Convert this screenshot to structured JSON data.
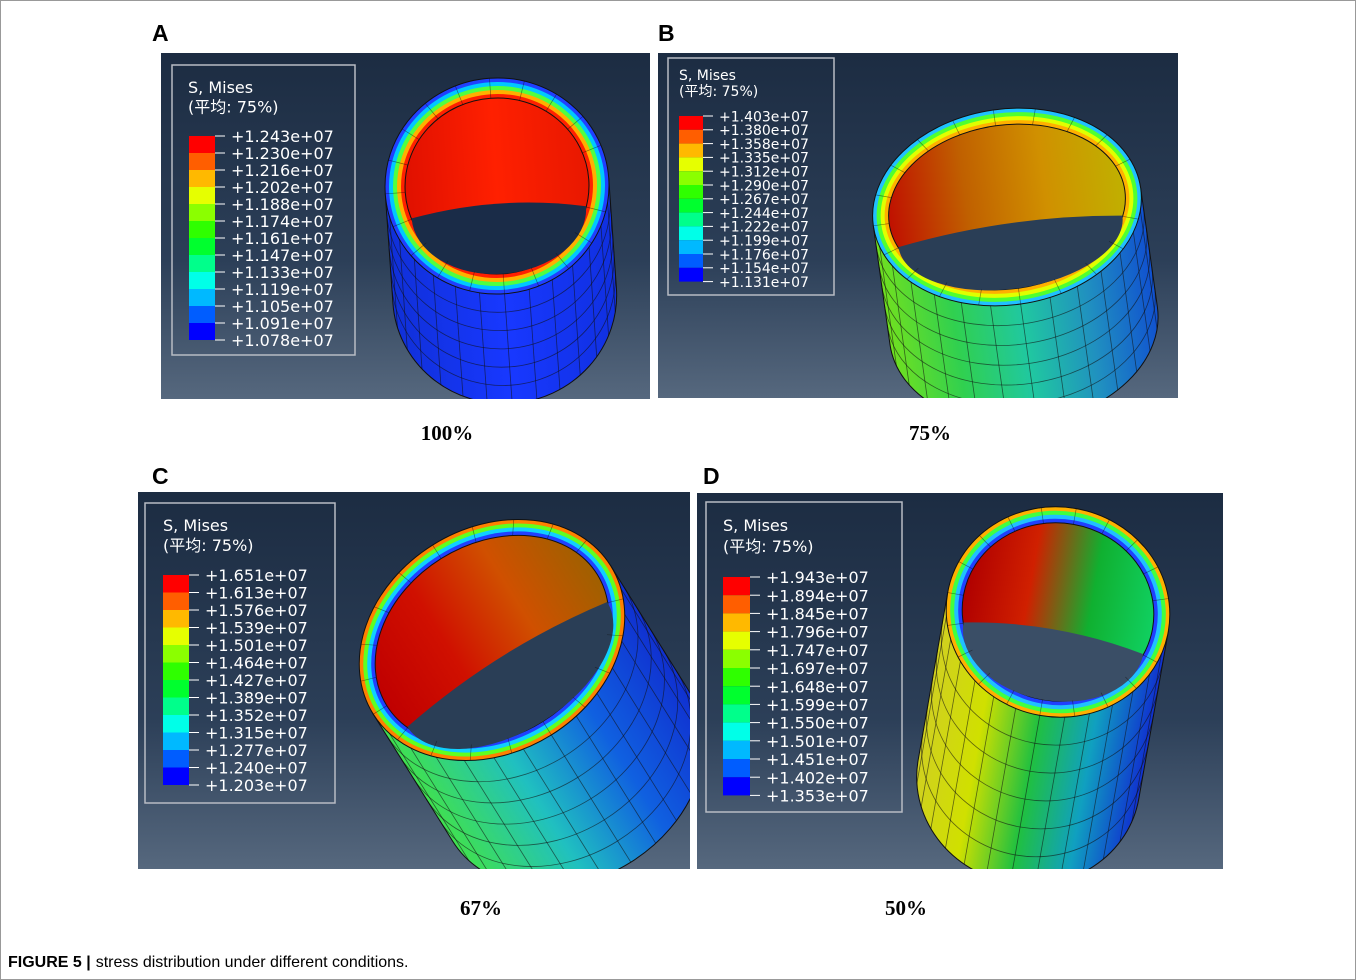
{
  "panels": [
    {
      "label": "A",
      "caption": "100%",
      "legend": {
        "title": "S, Mises",
        "subtitle": "(平均: 75%)",
        "values": [
          "+1.243e+07",
          "+1.230e+07",
          "+1.216e+07",
          "+1.202e+07",
          "+1.188e+07",
          "+1.174e+07",
          "+1.161e+07",
          "+1.147e+07",
          "+1.133e+07",
          "+1.119e+07",
          "+1.105e+07",
          "+1.091e+07",
          "+1.078e+07"
        ]
      }
    },
    {
      "label": "B",
      "caption": "75%",
      "legend": {
        "title": "S, Mises",
        "subtitle": "(平均: 75%)",
        "values": [
          "+1.403e+07",
          "+1.380e+07",
          "+1.358e+07",
          "+1.335e+07",
          "+1.312e+07",
          "+1.290e+07",
          "+1.267e+07",
          "+1.244e+07",
          "+1.222e+07",
          "+1.199e+07",
          "+1.176e+07",
          "+1.154e+07",
          "+1.131e+07"
        ]
      }
    },
    {
      "label": "C",
      "caption": "67%",
      "legend": {
        "title": "S, Mises",
        "subtitle": "(平均: 75%)",
        "values": [
          "+1.651e+07",
          "+1.613e+07",
          "+1.576e+07",
          "+1.539e+07",
          "+1.501e+07",
          "+1.464e+07",
          "+1.427e+07",
          "+1.389e+07",
          "+1.352e+07",
          "+1.315e+07",
          "+1.277e+07",
          "+1.240e+07",
          "+1.203e+07"
        ]
      }
    },
    {
      "label": "D",
      "caption": "50%",
      "legend": {
        "title": "S, Mises",
        "subtitle": "(平均: 75%)",
        "values": [
          "+1.943e+07",
          "+1.894e+07",
          "+1.845e+07",
          "+1.796e+07",
          "+1.747e+07",
          "+1.697e+07",
          "+1.648e+07",
          "+1.599e+07",
          "+1.550e+07",
          "+1.501e+07",
          "+1.451e+07",
          "+1.402e+07",
          "+1.353e+07"
        ]
      }
    }
  ],
  "figure_caption": {
    "label": "FIGURE 5 |",
    "text": "stress distribution under different conditions."
  }
}
